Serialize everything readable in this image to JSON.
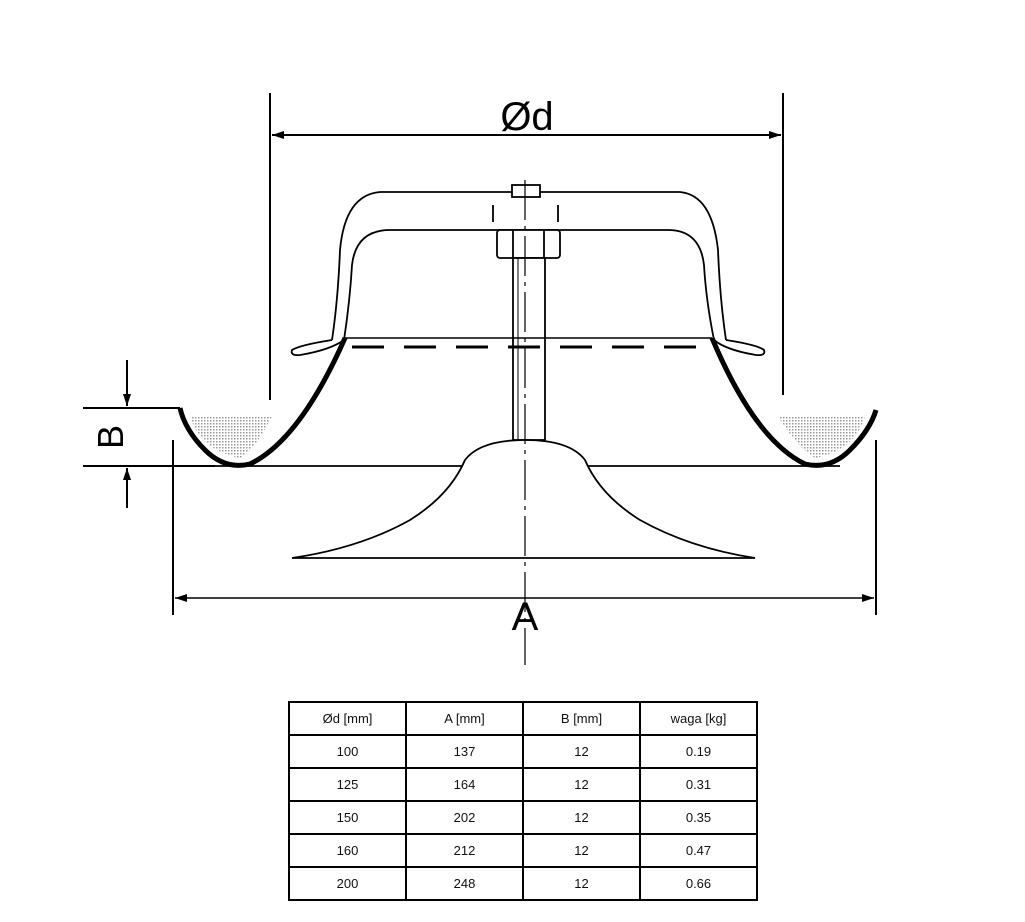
{
  "drawing": {
    "labels": {
      "diameter": "Ød",
      "A": "A",
      "B": "B"
    }
  },
  "table": {
    "headers": [
      "Ød [mm]",
      "A [mm]",
      "B [mm]",
      "waga [kg]"
    ],
    "rows": [
      [
        "100",
        "137",
        "12",
        "0.19"
      ],
      [
        "125",
        "164",
        "12",
        "0.31"
      ],
      [
        "150",
        "202",
        "12",
        "0.35"
      ],
      [
        "160",
        "212",
        "12",
        "0.47"
      ],
      [
        "200",
        "248",
        "12",
        "0.66"
      ]
    ]
  }
}
